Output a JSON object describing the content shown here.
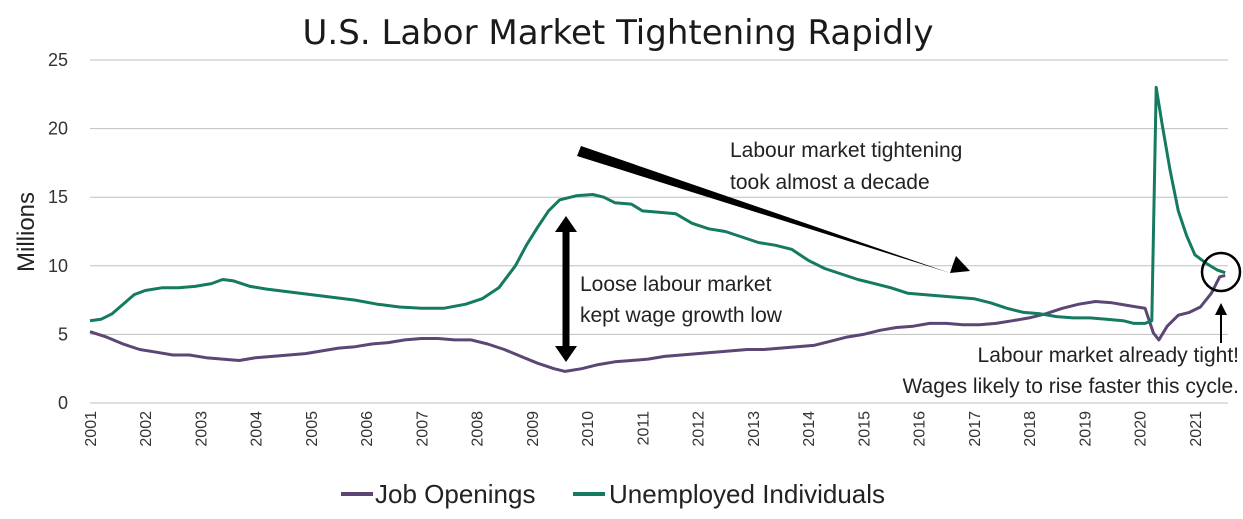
{
  "chart_data": {
    "type": "line",
    "title": "U.S. Labor Market Tightening Rapidly",
    "ylabel": "Millions",
    "xlabel": "",
    "ylim": [
      0,
      25
    ],
    "yticks": [
      "0",
      "5",
      "10",
      "15",
      "20",
      "25"
    ],
    "xlim": [
      2001.0,
      2021.6
    ],
    "xticks": [
      "2001",
      "2002",
      "2003",
      "2004",
      "2005",
      "2006",
      "2007",
      "2008",
      "2009",
      "2010",
      "2011",
      "2012",
      "2013",
      "2014",
      "2015",
      "2016",
      "2017",
      "2018",
      "2019",
      "2020",
      "2021"
    ],
    "grid": "horizontal",
    "legend_position": "bottom",
    "series": [
      {
        "name": "Job Openings",
        "color": "#5b4674",
        "points": [
          [
            2001.0,
            5.2
          ],
          [
            2001.3,
            4.8
          ],
          [
            2001.6,
            4.3
          ],
          [
            2001.9,
            3.9
          ],
          [
            2002.2,
            3.7
          ],
          [
            2002.5,
            3.5
          ],
          [
            2002.8,
            3.5
          ],
          [
            2003.1,
            3.3
          ],
          [
            2003.4,
            3.2
          ],
          [
            2003.7,
            3.1
          ],
          [
            2004.0,
            3.3
          ],
          [
            2004.3,
            3.4
          ],
          [
            2004.6,
            3.5
          ],
          [
            2004.9,
            3.6
          ],
          [
            2005.2,
            3.8
          ],
          [
            2005.5,
            4.0
          ],
          [
            2005.8,
            4.1
          ],
          [
            2006.1,
            4.3
          ],
          [
            2006.4,
            4.4
          ],
          [
            2006.7,
            4.6
          ],
          [
            2007.0,
            4.7
          ],
          [
            2007.3,
            4.7
          ],
          [
            2007.6,
            4.6
          ],
          [
            2007.9,
            4.6
          ],
          [
            2008.2,
            4.3
          ],
          [
            2008.5,
            3.9
          ],
          [
            2008.8,
            3.4
          ],
          [
            2009.1,
            2.9
          ],
          [
            2009.4,
            2.5
          ],
          [
            2009.6,
            2.3
          ],
          [
            2009.9,
            2.5
          ],
          [
            2010.2,
            2.8
          ],
          [
            2010.5,
            3.0
          ],
          [
            2010.8,
            3.1
          ],
          [
            2011.1,
            3.2
          ],
          [
            2011.4,
            3.4
          ],
          [
            2011.7,
            3.5
          ],
          [
            2012.0,
            3.6
          ],
          [
            2012.3,
            3.7
          ],
          [
            2012.6,
            3.8
          ],
          [
            2012.9,
            3.9
          ],
          [
            2013.2,
            3.9
          ],
          [
            2013.5,
            4.0
          ],
          [
            2013.8,
            4.1
          ],
          [
            2014.1,
            4.2
          ],
          [
            2014.4,
            4.5
          ],
          [
            2014.7,
            4.8
          ],
          [
            2015.0,
            5.0
          ],
          [
            2015.3,
            5.3
          ],
          [
            2015.6,
            5.5
          ],
          [
            2015.9,
            5.6
          ],
          [
            2016.2,
            5.8
          ],
          [
            2016.5,
            5.8
          ],
          [
            2016.8,
            5.7
          ],
          [
            2017.1,
            5.7
          ],
          [
            2017.4,
            5.8
          ],
          [
            2017.7,
            6.0
          ],
          [
            2018.0,
            6.2
          ],
          [
            2018.3,
            6.5
          ],
          [
            2018.6,
            6.9
          ],
          [
            2018.9,
            7.2
          ],
          [
            2019.2,
            7.4
          ],
          [
            2019.5,
            7.3
          ],
          [
            2019.8,
            7.1
          ],
          [
            2020.1,
            6.9
          ],
          [
            2020.25,
            5.1
          ],
          [
            2020.35,
            4.6
          ],
          [
            2020.5,
            5.6
          ],
          [
            2020.7,
            6.4
          ],
          [
            2020.9,
            6.6
          ],
          [
            2021.1,
            7.0
          ],
          [
            2021.3,
            8.0
          ],
          [
            2021.45,
            9.2
          ],
          [
            2021.55,
            9.3
          ]
        ]
      },
      {
        "name": "Unemployed Individuals",
        "color": "#147a60",
        "points": [
          [
            2001.0,
            6.0
          ],
          [
            2001.2,
            6.1
          ],
          [
            2001.4,
            6.5
          ],
          [
            2001.6,
            7.2
          ],
          [
            2001.8,
            7.9
          ],
          [
            2002.0,
            8.2
          ],
          [
            2002.3,
            8.4
          ],
          [
            2002.6,
            8.4
          ],
          [
            2002.9,
            8.5
          ],
          [
            2003.2,
            8.7
          ],
          [
            2003.4,
            9.0
          ],
          [
            2003.6,
            8.9
          ],
          [
            2003.9,
            8.5
          ],
          [
            2004.2,
            8.3
          ],
          [
            2004.6,
            8.1
          ],
          [
            2005.0,
            7.9
          ],
          [
            2005.4,
            7.7
          ],
          [
            2005.8,
            7.5
          ],
          [
            2006.2,
            7.2
          ],
          [
            2006.6,
            7.0
          ],
          [
            2007.0,
            6.9
          ],
          [
            2007.4,
            6.9
          ],
          [
            2007.8,
            7.2
          ],
          [
            2008.1,
            7.6
          ],
          [
            2008.4,
            8.4
          ],
          [
            2008.7,
            10.0
          ],
          [
            2008.9,
            11.5
          ],
          [
            2009.1,
            12.8
          ],
          [
            2009.3,
            14.0
          ],
          [
            2009.5,
            14.8
          ],
          [
            2009.8,
            15.1
          ],
          [
            2010.1,
            15.2
          ],
          [
            2010.3,
            15.0
          ],
          [
            2010.5,
            14.6
          ],
          [
            2010.8,
            14.5
          ],
          [
            2011.0,
            14.0
          ],
          [
            2011.3,
            13.9
          ],
          [
            2011.6,
            13.8
          ],
          [
            2011.9,
            13.1
          ],
          [
            2012.2,
            12.7
          ],
          [
            2012.5,
            12.5
          ],
          [
            2012.8,
            12.1
          ],
          [
            2013.1,
            11.7
          ],
          [
            2013.4,
            11.5
          ],
          [
            2013.7,
            11.2
          ],
          [
            2014.0,
            10.4
          ],
          [
            2014.3,
            9.8
          ],
          [
            2014.6,
            9.4
          ],
          [
            2014.9,
            9.0
          ],
          [
            2015.2,
            8.7
          ],
          [
            2015.5,
            8.4
          ],
          [
            2015.8,
            8.0
          ],
          [
            2016.1,
            7.9
          ],
          [
            2016.4,
            7.8
          ],
          [
            2016.7,
            7.7
          ],
          [
            2017.0,
            7.6
          ],
          [
            2017.3,
            7.3
          ],
          [
            2017.6,
            6.9
          ],
          [
            2017.9,
            6.6
          ],
          [
            2018.2,
            6.5
          ],
          [
            2018.5,
            6.3
          ],
          [
            2018.8,
            6.2
          ],
          [
            2019.1,
            6.2
          ],
          [
            2019.4,
            6.1
          ],
          [
            2019.7,
            6.0
          ],
          [
            2019.9,
            5.8
          ],
          [
            2020.1,
            5.8
          ],
          [
            2020.22,
            6.0
          ],
          [
            2020.3,
            23.0
          ],
          [
            2020.4,
            20.5
          ],
          [
            2020.55,
            17.0
          ],
          [
            2020.7,
            14.0
          ],
          [
            2020.85,
            12.2
          ],
          [
            2021.0,
            10.8
          ],
          [
            2021.2,
            10.2
          ],
          [
            2021.4,
            9.7
          ],
          [
            2021.55,
            9.5
          ]
        ]
      }
    ],
    "annotations": [
      {
        "lines": [
          "Labour market tightening",
          "took almost a decade"
        ]
      },
      {
        "lines": [
          "Loose labour market",
          "kept wage growth low"
        ]
      },
      {
        "lines": [
          "Labour market already tight!",
          "Wages likely to rise faster this cycle."
        ]
      }
    ]
  }
}
